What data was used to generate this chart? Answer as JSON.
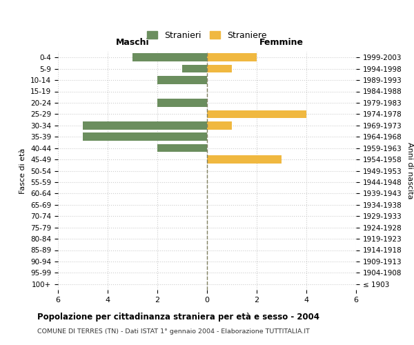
{
  "age_groups": [
    "100+",
    "95-99",
    "90-94",
    "85-89",
    "80-84",
    "75-79",
    "70-74",
    "65-69",
    "60-64",
    "55-59",
    "50-54",
    "45-49",
    "40-44",
    "35-39",
    "30-34",
    "25-29",
    "20-24",
    "15-19",
    "10-14",
    "5-9",
    "0-4"
  ],
  "birth_years": [
    "≤ 1903",
    "1904-1908",
    "1909-1913",
    "1914-1918",
    "1919-1923",
    "1924-1928",
    "1929-1933",
    "1934-1938",
    "1939-1943",
    "1944-1948",
    "1949-1953",
    "1954-1958",
    "1959-1963",
    "1964-1968",
    "1969-1973",
    "1974-1978",
    "1979-1983",
    "1984-1988",
    "1989-1993",
    "1994-1998",
    "1999-2003"
  ],
  "males": [
    0,
    0,
    0,
    0,
    0,
    0,
    0,
    0,
    0,
    0,
    0,
    0,
    2,
    5,
    5,
    0,
    2,
    0,
    2,
    1,
    3
  ],
  "females": [
    0,
    0,
    0,
    0,
    0,
    0,
    0,
    0,
    0,
    0,
    0,
    3,
    0,
    0,
    1,
    4,
    0,
    0,
    0,
    1,
    2
  ],
  "male_color": "#6b8e5e",
  "female_color": "#f0b840",
  "background_color": "#ffffff",
  "grid_color": "#cccccc",
  "zero_line_color": "#808060",
  "title": "Popolazione per cittadinanza straniera per età e sesso - 2004",
  "subtitle": "COMUNE DI TERRES (TN) - Dati ISTAT 1° gennaio 2004 - Elaborazione TUTTITALIA.IT",
  "xlabel_left": "Maschi",
  "xlabel_right": "Femmine",
  "ylabel_left": "Fasce di età",
  "ylabel_right": "Anni di nascita",
  "legend_male": "Stranieri",
  "legend_female": "Straniere",
  "xlim": 6,
  "xticks": [
    -6,
    -4,
    -2,
    0,
    2,
    4,
    6
  ]
}
